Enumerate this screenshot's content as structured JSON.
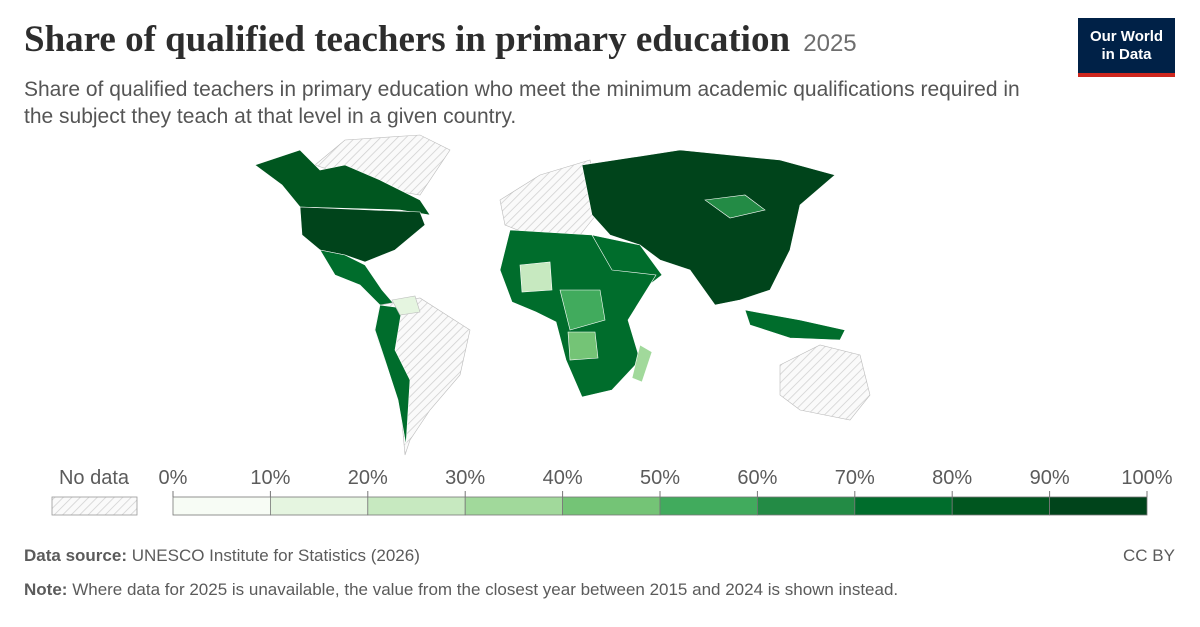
{
  "header": {
    "title": "Share of qualified teachers in primary education",
    "year": "2025",
    "subtitle": "Share of qualified teachers in primary education who meet the minimum academic qualifications required in the subject they teach at that level in a given country.",
    "logo": [
      "Our World",
      "in Data"
    ]
  },
  "legend": {
    "no_data": "No data",
    "bins": [
      {
        "value": 0,
        "label": "0%"
      },
      {
        "value": 10,
        "label": "10%"
      },
      {
        "value": 20,
        "label": "20%"
      },
      {
        "value": 30,
        "label": "30%"
      },
      {
        "value": 40,
        "label": "40%"
      },
      {
        "value": 50,
        "label": "50%"
      },
      {
        "value": 60,
        "label": "60%"
      },
      {
        "value": 70,
        "label": "70%"
      },
      {
        "value": 80,
        "label": "80%"
      },
      {
        "value": 90,
        "label": "90%"
      },
      {
        "value": 100,
        "label": "100%"
      }
    ],
    "colors": [
      "#f7fcf5",
      "#e5f5e0",
      "#c7e9c0",
      "#a1d99b",
      "#74c476",
      "#41ab5d",
      "#238b45",
      "#006d2c",
      "#00561f",
      "#00441b"
    ]
  },
  "footer": {
    "source_label": "Data source:",
    "source": "UNESCO Institute for Statistics (2026)",
    "license": "CC BY",
    "note_label": "Note:",
    "note": "Where data for 2025 is unavailable, the value from the closest year between 2015 and 2024 is shown instead."
  }
}
